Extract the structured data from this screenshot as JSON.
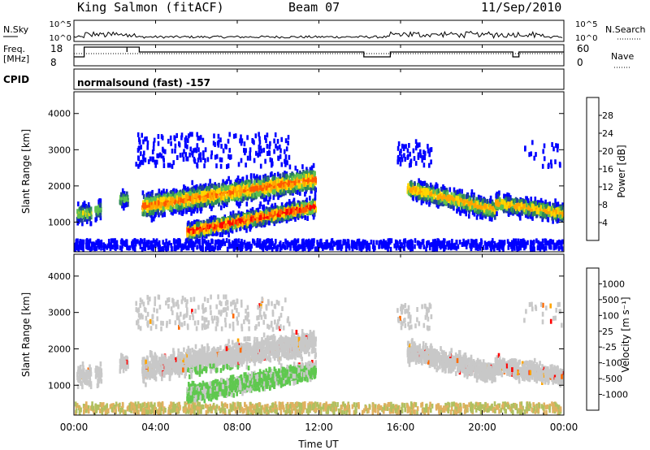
{
  "header": {
    "station": "King Salmon (fitACF)",
    "beam": "Beam 07",
    "date": "11/Sep/2010"
  },
  "top_panels": {
    "nsky_label": "N.Sky",
    "nsearch_label": "N.Search",
    "left_ticks": [
      "10^5",
      "10^0"
    ],
    "right_ticks": [
      "10^5",
      "10^0"
    ],
    "freq_label_1": "Freq.",
    "freq_label_2": "[MHz]",
    "freq_ticks": [
      "18",
      "8"
    ],
    "nave_label": "Nave",
    "nave_ticks": [
      "60",
      "0"
    ],
    "cpid_label": "CPID",
    "cpid_text": "normalsound (fast) -157"
  },
  "colors": {
    "power": [
      "#0000ff",
      "#1f3fa0",
      "#2e8b57",
      "#5fc04f",
      "#ffd700",
      "#ffa500",
      "#ff5a00",
      "#ff0000"
    ],
    "velocity": [
      "#ff0000",
      "#ff6a00",
      "#ffa500",
      "#c8c8c8",
      "#c8c8c8",
      "#5fc84f",
      "#2e8b57",
      "#1f3fa0",
      "#1a33cc"
    ],
    "ground": "#888888"
  },
  "chart_data": [
    {
      "type": "heatmap",
      "name": "power",
      "ylabel": "Slant Range [km]",
      "yticks": [
        "1000",
        "2000",
        "3000",
        "4000"
      ],
      "ylim": [
        180,
        4600
      ],
      "xlim": [
        0,
        24
      ],
      "colorbar_label": "Power [dB]",
      "colorbar_ticks": [
        "4",
        "8",
        "12",
        "16",
        "20",
        "24",
        "28"
      ],
      "colorbar_range": [
        0,
        32
      ]
    },
    {
      "type": "heatmap",
      "name": "velocity",
      "ylabel": "Slant Range [km]",
      "yticks": [
        "1000",
        "2000",
        "3000",
        "4000"
      ],
      "ylim": [
        180,
        4600
      ],
      "xlim": [
        0,
        24
      ],
      "xticks": [
        "00:00",
        "04:00",
        "08:00",
        "12:00",
        "16:00",
        "20:00",
        "00:00"
      ],
      "xlabel": "Time UT",
      "colorbar_label": "Velocity [m s⁻¹]",
      "colorbar_ticks": [
        "-1000",
        "-500",
        "-100",
        "-25",
        "25",
        "100",
        "500",
        "1000"
      ]
    }
  ]
}
